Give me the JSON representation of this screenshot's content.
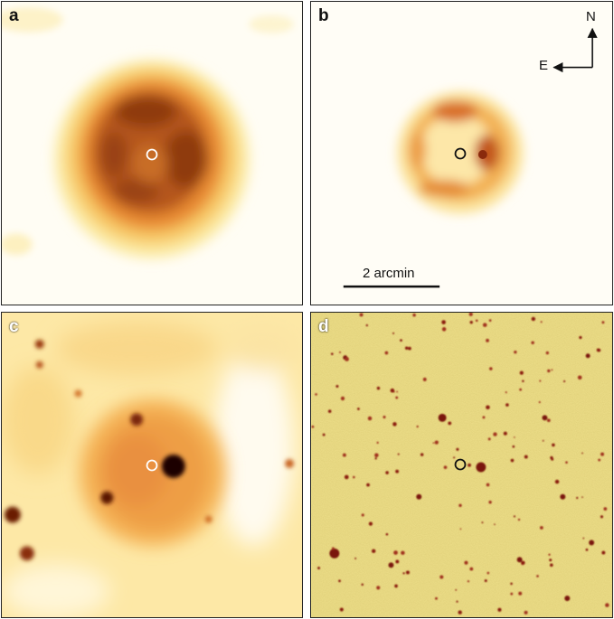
{
  "panels": {
    "a": {
      "label": "a"
    },
    "b": {
      "label": "b"
    },
    "c": {
      "label": "c"
    },
    "d": {
      "label": "d"
    }
  },
  "compass": {
    "north": "N",
    "east": "E"
  },
  "scale_bar": {
    "label": "2 arcmin"
  },
  "colors": {
    "background": "#fffdf6",
    "nebula_outer": "#fbe9a0",
    "nebula_mid": "#f0a040",
    "nebula_core": "#a04010",
    "star": "#7a1208",
    "field_yellow": "#eedf8a"
  }
}
